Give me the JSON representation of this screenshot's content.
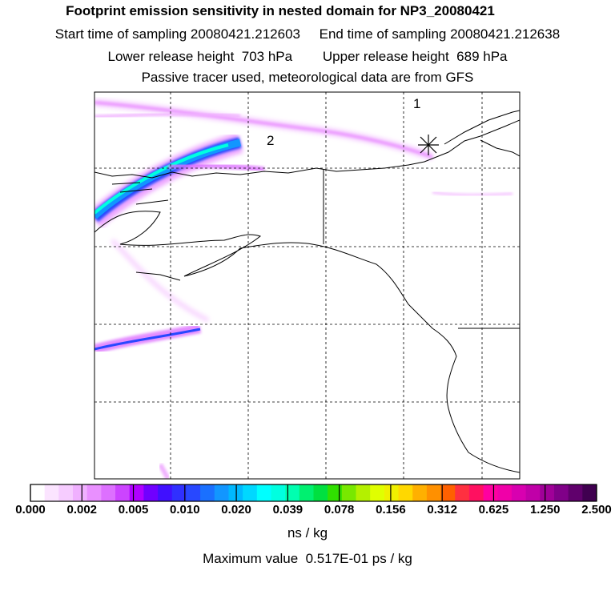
{
  "header": {
    "title": "Footprint emission sensitivity in nested domain for NP3_20080421",
    "line2": "Start time of sampling 20080421.212603     End time of sampling 20080421.212638",
    "line3": "Lower release height  703 hPa        Upper release height  689 hPa",
    "line4": "Passive tracer used, meteorological data are from GFS"
  },
  "map": {
    "point_labels": [
      "1",
      "2"
    ],
    "colors": {
      "land_outline": "#000000",
      "plume_magenta": "#e040ff",
      "plume_core": "#00e8f0",
      "plume_blue": "#20a0e8"
    }
  },
  "colorbar": {
    "colors": [
      "#ffffff",
      "#fbe4ff",
      "#f6ccff",
      "#f0b0ff",
      "#e990ff",
      "#dd70ff",
      "#cc44ff",
      "#b000ff",
      "#7000ff",
      "#4010ff",
      "#3030ff",
      "#2848ff",
      "#1a70ff",
      "#1296ff",
      "#00b8ff",
      "#00d8ff",
      "#00ffff",
      "#00ffe0",
      "#00ffb0",
      "#00f070",
      "#00e040",
      "#30e000",
      "#78e800",
      "#b4f000",
      "#e0ff00",
      "#f0f000",
      "#ffd800",
      "#ffb000",
      "#ff9000",
      "#ff6000",
      "#ff3040",
      "#ff1060",
      "#ff00a0",
      "#f000a8",
      "#d800b0",
      "#c000a8",
      "#a00098",
      "#800088",
      "#60006c",
      "#400050"
    ],
    "tick_labels": [
      "0.000",
      "0.002",
      "0.005",
      "0.010",
      "0.020",
      "0.039",
      "0.078",
      "0.156",
      "0.312",
      "0.625",
      "1.250",
      "2.500"
    ],
    "units": "ns / kg",
    "max_value_text": "Maximum value  0.517E-01 ps / kg"
  }
}
